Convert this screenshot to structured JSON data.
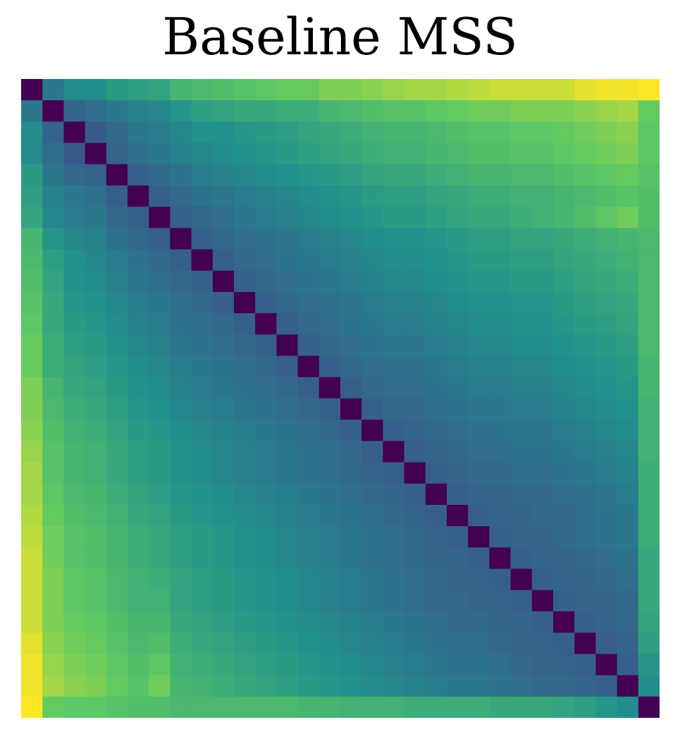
{
  "chart_data": {
    "type": "heatmap",
    "title": "Baseline MSS",
    "colormap": "viridis",
    "grid": false,
    "xlabel": "",
    "ylabel": "",
    "rows": 30,
    "cols": 30,
    "value_range": [
      0,
      1
    ],
    "values": [
      [
        0.0,
        0.4,
        0.48,
        0.48,
        0.54,
        0.56,
        0.58,
        0.66,
        0.68,
        0.7,
        0.72,
        0.74,
        0.76,
        0.76,
        0.8,
        0.8,
        0.82,
        0.84,
        0.86,
        0.86,
        0.88,
        0.9,
        0.92,
        0.92,
        0.92,
        0.92,
        0.96,
        0.98,
        0.98,
        1.0
      ],
      [
        0.4,
        0.0,
        0.32,
        0.36,
        0.4,
        0.44,
        0.46,
        0.52,
        0.56,
        0.58,
        0.6,
        0.6,
        0.62,
        0.62,
        0.66,
        0.68,
        0.7,
        0.72,
        0.72,
        0.74,
        0.76,
        0.78,
        0.78,
        0.8,
        0.8,
        0.8,
        0.82,
        0.84,
        0.86,
        0.76
      ],
      [
        0.48,
        0.32,
        0.0,
        0.28,
        0.34,
        0.4,
        0.42,
        0.46,
        0.5,
        0.5,
        0.52,
        0.54,
        0.56,
        0.58,
        0.6,
        0.62,
        0.64,
        0.66,
        0.66,
        0.68,
        0.7,
        0.72,
        0.72,
        0.74,
        0.74,
        0.76,
        0.78,
        0.8,
        0.82,
        0.74
      ],
      [
        0.48,
        0.36,
        0.28,
        0.0,
        0.32,
        0.36,
        0.4,
        0.44,
        0.46,
        0.48,
        0.5,
        0.52,
        0.54,
        0.56,
        0.58,
        0.6,
        0.62,
        0.64,
        0.64,
        0.66,
        0.68,
        0.7,
        0.7,
        0.72,
        0.72,
        0.74,
        0.76,
        0.78,
        0.8,
        0.74
      ],
      [
        0.54,
        0.4,
        0.34,
        0.32,
        0.0,
        0.3,
        0.34,
        0.38,
        0.42,
        0.44,
        0.46,
        0.48,
        0.5,
        0.52,
        0.54,
        0.56,
        0.58,
        0.6,
        0.6,
        0.62,
        0.64,
        0.66,
        0.66,
        0.68,
        0.68,
        0.7,
        0.72,
        0.74,
        0.76,
        0.72
      ],
      [
        0.56,
        0.44,
        0.4,
        0.36,
        0.3,
        0.0,
        0.3,
        0.34,
        0.38,
        0.4,
        0.42,
        0.44,
        0.46,
        0.48,
        0.5,
        0.52,
        0.54,
        0.56,
        0.56,
        0.58,
        0.6,
        0.62,
        0.62,
        0.64,
        0.64,
        0.66,
        0.68,
        0.7,
        0.72,
        0.7
      ],
      [
        0.58,
        0.46,
        0.42,
        0.4,
        0.34,
        0.3,
        0.0,
        0.3,
        0.34,
        0.36,
        0.4,
        0.42,
        0.44,
        0.46,
        0.48,
        0.5,
        0.52,
        0.54,
        0.54,
        0.56,
        0.58,
        0.6,
        0.6,
        0.62,
        0.64,
        0.66,
        0.7,
        0.74,
        0.78,
        0.7
      ],
      [
        0.66,
        0.52,
        0.46,
        0.44,
        0.38,
        0.34,
        0.3,
        0.0,
        0.3,
        0.34,
        0.36,
        0.38,
        0.4,
        0.42,
        0.44,
        0.46,
        0.48,
        0.5,
        0.5,
        0.52,
        0.54,
        0.56,
        0.56,
        0.58,
        0.58,
        0.6,
        0.62,
        0.64,
        0.66,
        0.68
      ],
      [
        0.68,
        0.56,
        0.5,
        0.46,
        0.42,
        0.38,
        0.34,
        0.3,
        0.0,
        0.3,
        0.34,
        0.36,
        0.38,
        0.4,
        0.42,
        0.44,
        0.46,
        0.48,
        0.48,
        0.5,
        0.52,
        0.54,
        0.54,
        0.56,
        0.56,
        0.58,
        0.6,
        0.62,
        0.64,
        0.68
      ],
      [
        0.7,
        0.58,
        0.5,
        0.48,
        0.44,
        0.4,
        0.36,
        0.34,
        0.3,
        0.0,
        0.3,
        0.34,
        0.36,
        0.38,
        0.4,
        0.42,
        0.44,
        0.46,
        0.46,
        0.48,
        0.5,
        0.52,
        0.52,
        0.54,
        0.54,
        0.56,
        0.58,
        0.6,
        0.62,
        0.68
      ],
      [
        0.72,
        0.6,
        0.52,
        0.5,
        0.46,
        0.42,
        0.4,
        0.36,
        0.34,
        0.3,
        0.0,
        0.3,
        0.34,
        0.36,
        0.38,
        0.4,
        0.42,
        0.44,
        0.44,
        0.46,
        0.48,
        0.5,
        0.5,
        0.52,
        0.52,
        0.54,
        0.56,
        0.58,
        0.6,
        0.68
      ],
      [
        0.74,
        0.6,
        0.54,
        0.52,
        0.48,
        0.44,
        0.42,
        0.38,
        0.36,
        0.34,
        0.3,
        0.0,
        0.3,
        0.34,
        0.36,
        0.38,
        0.4,
        0.42,
        0.42,
        0.44,
        0.46,
        0.48,
        0.48,
        0.5,
        0.5,
        0.52,
        0.54,
        0.56,
        0.58,
        0.68
      ],
      [
        0.76,
        0.62,
        0.56,
        0.54,
        0.5,
        0.46,
        0.44,
        0.4,
        0.38,
        0.36,
        0.34,
        0.3,
        0.0,
        0.3,
        0.34,
        0.36,
        0.38,
        0.4,
        0.4,
        0.42,
        0.44,
        0.46,
        0.46,
        0.48,
        0.48,
        0.5,
        0.52,
        0.54,
        0.56,
        0.68
      ],
      [
        0.76,
        0.62,
        0.58,
        0.56,
        0.52,
        0.48,
        0.46,
        0.42,
        0.4,
        0.38,
        0.36,
        0.34,
        0.3,
        0.0,
        0.3,
        0.34,
        0.36,
        0.38,
        0.38,
        0.4,
        0.42,
        0.44,
        0.44,
        0.46,
        0.46,
        0.48,
        0.5,
        0.52,
        0.54,
        0.66
      ],
      [
        0.8,
        0.66,
        0.6,
        0.58,
        0.54,
        0.5,
        0.48,
        0.44,
        0.42,
        0.4,
        0.38,
        0.36,
        0.34,
        0.3,
        0.0,
        0.3,
        0.34,
        0.36,
        0.36,
        0.38,
        0.4,
        0.42,
        0.42,
        0.44,
        0.44,
        0.46,
        0.48,
        0.5,
        0.52,
        0.66
      ],
      [
        0.8,
        0.68,
        0.62,
        0.6,
        0.56,
        0.52,
        0.5,
        0.46,
        0.44,
        0.42,
        0.4,
        0.38,
        0.36,
        0.34,
        0.3,
        0.0,
        0.3,
        0.34,
        0.34,
        0.36,
        0.38,
        0.4,
        0.4,
        0.42,
        0.42,
        0.44,
        0.46,
        0.48,
        0.5,
        0.64
      ],
      [
        0.82,
        0.7,
        0.64,
        0.62,
        0.58,
        0.54,
        0.52,
        0.48,
        0.46,
        0.44,
        0.42,
        0.4,
        0.38,
        0.36,
        0.34,
        0.3,
        0.0,
        0.3,
        0.32,
        0.34,
        0.36,
        0.38,
        0.38,
        0.4,
        0.4,
        0.42,
        0.44,
        0.46,
        0.48,
        0.64
      ],
      [
        0.84,
        0.72,
        0.66,
        0.64,
        0.6,
        0.56,
        0.54,
        0.5,
        0.48,
        0.46,
        0.44,
        0.42,
        0.4,
        0.38,
        0.36,
        0.34,
        0.3,
        0.0,
        0.3,
        0.32,
        0.34,
        0.36,
        0.36,
        0.38,
        0.38,
        0.4,
        0.42,
        0.44,
        0.46,
        0.64
      ],
      [
        0.86,
        0.72,
        0.66,
        0.64,
        0.6,
        0.56,
        0.54,
        0.5,
        0.48,
        0.46,
        0.44,
        0.42,
        0.4,
        0.38,
        0.36,
        0.34,
        0.32,
        0.3,
        0.0,
        0.3,
        0.32,
        0.34,
        0.34,
        0.36,
        0.36,
        0.38,
        0.4,
        0.42,
        0.44,
        0.62
      ],
      [
        0.86,
        0.74,
        0.68,
        0.66,
        0.62,
        0.58,
        0.56,
        0.52,
        0.5,
        0.48,
        0.46,
        0.44,
        0.42,
        0.4,
        0.38,
        0.36,
        0.34,
        0.32,
        0.3,
        0.0,
        0.3,
        0.32,
        0.32,
        0.34,
        0.34,
        0.36,
        0.38,
        0.4,
        0.42,
        0.62
      ],
      [
        0.88,
        0.76,
        0.7,
        0.68,
        0.64,
        0.6,
        0.58,
        0.54,
        0.52,
        0.5,
        0.48,
        0.46,
        0.44,
        0.42,
        0.4,
        0.38,
        0.36,
        0.34,
        0.32,
        0.3,
        0.0,
        0.3,
        0.32,
        0.32,
        0.34,
        0.34,
        0.36,
        0.38,
        0.4,
        0.62
      ],
      [
        0.9,
        0.78,
        0.72,
        0.7,
        0.66,
        0.62,
        0.6,
        0.56,
        0.54,
        0.52,
        0.5,
        0.48,
        0.46,
        0.44,
        0.42,
        0.4,
        0.38,
        0.36,
        0.34,
        0.32,
        0.3,
        0.0,
        0.3,
        0.32,
        0.32,
        0.34,
        0.36,
        0.38,
        0.4,
        0.62
      ],
      [
        0.92,
        0.78,
        0.72,
        0.7,
        0.66,
        0.62,
        0.6,
        0.56,
        0.54,
        0.52,
        0.5,
        0.48,
        0.46,
        0.44,
        0.42,
        0.4,
        0.38,
        0.36,
        0.34,
        0.32,
        0.32,
        0.3,
        0.0,
        0.3,
        0.32,
        0.32,
        0.34,
        0.36,
        0.38,
        0.6
      ],
      [
        0.92,
        0.8,
        0.74,
        0.72,
        0.68,
        0.64,
        0.62,
        0.58,
        0.56,
        0.54,
        0.52,
        0.5,
        0.48,
        0.46,
        0.44,
        0.42,
        0.4,
        0.38,
        0.36,
        0.34,
        0.32,
        0.32,
        0.3,
        0.0,
        0.3,
        0.32,
        0.32,
        0.34,
        0.36,
        0.6
      ],
      [
        0.92,
        0.8,
        0.74,
        0.72,
        0.68,
        0.64,
        0.64,
        0.58,
        0.56,
        0.54,
        0.52,
        0.5,
        0.48,
        0.46,
        0.44,
        0.42,
        0.4,
        0.38,
        0.36,
        0.34,
        0.34,
        0.32,
        0.32,
        0.3,
        0.0,
        0.3,
        0.32,
        0.32,
        0.34,
        0.6
      ],
      [
        0.92,
        0.8,
        0.76,
        0.74,
        0.7,
        0.66,
        0.66,
        0.6,
        0.58,
        0.56,
        0.54,
        0.52,
        0.5,
        0.48,
        0.46,
        0.44,
        0.42,
        0.4,
        0.38,
        0.36,
        0.34,
        0.34,
        0.32,
        0.32,
        0.3,
        0.0,
        0.3,
        0.32,
        0.34,
        0.58
      ],
      [
        0.96,
        0.82,
        0.78,
        0.76,
        0.72,
        0.68,
        0.7,
        0.62,
        0.6,
        0.58,
        0.56,
        0.54,
        0.52,
        0.5,
        0.48,
        0.46,
        0.44,
        0.42,
        0.4,
        0.38,
        0.36,
        0.36,
        0.34,
        0.32,
        0.32,
        0.3,
        0.0,
        0.3,
        0.32,
        0.56
      ],
      [
        0.98,
        0.84,
        0.8,
        0.78,
        0.74,
        0.7,
        0.74,
        0.64,
        0.62,
        0.6,
        0.58,
        0.56,
        0.54,
        0.52,
        0.5,
        0.48,
        0.46,
        0.44,
        0.42,
        0.4,
        0.38,
        0.38,
        0.36,
        0.34,
        0.32,
        0.32,
        0.3,
        0.0,
        0.3,
        0.52
      ],
      [
        0.98,
        0.86,
        0.82,
        0.8,
        0.76,
        0.72,
        0.78,
        0.66,
        0.64,
        0.62,
        0.6,
        0.58,
        0.56,
        0.54,
        0.52,
        0.5,
        0.48,
        0.46,
        0.44,
        0.42,
        0.4,
        0.4,
        0.38,
        0.36,
        0.34,
        0.34,
        0.32,
        0.3,
        0.0,
        0.48
      ],
      [
        1.0,
        0.76,
        0.74,
        0.74,
        0.72,
        0.7,
        0.7,
        0.68,
        0.68,
        0.68,
        0.68,
        0.68,
        0.68,
        0.66,
        0.66,
        0.64,
        0.64,
        0.64,
        0.62,
        0.62,
        0.62,
        0.62,
        0.6,
        0.6,
        0.6,
        0.58,
        0.56,
        0.52,
        0.48,
        0.0
      ]
    ]
  }
}
